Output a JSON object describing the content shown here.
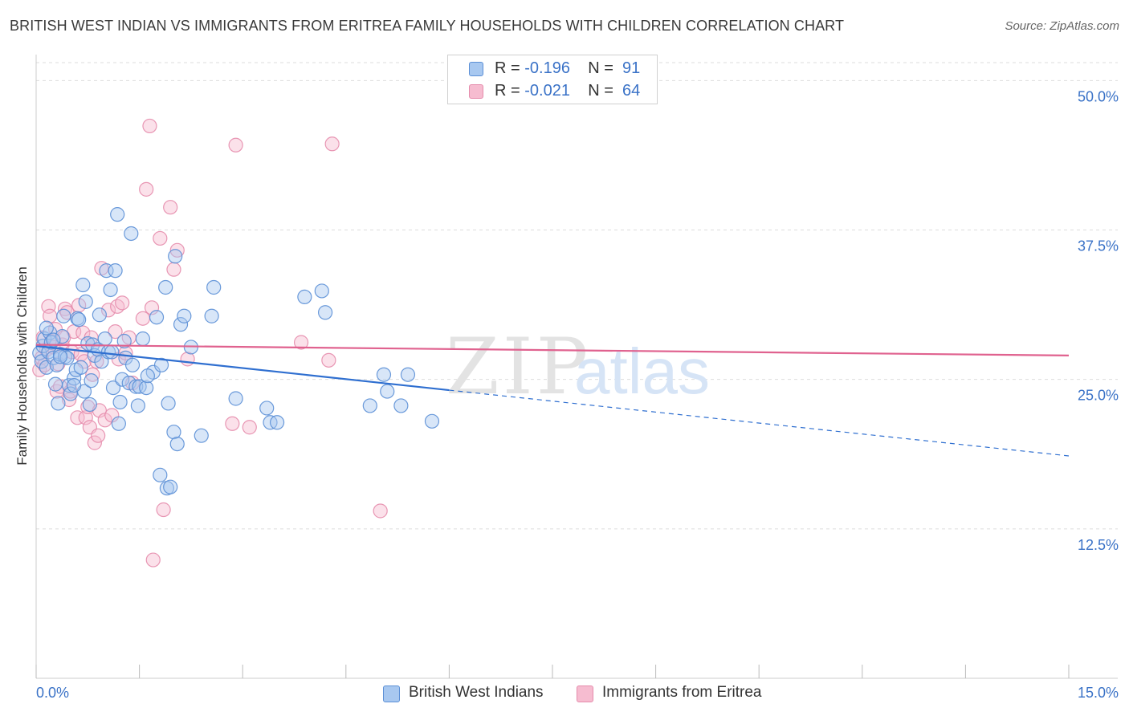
{
  "header": {
    "title": "BRITISH WEST INDIAN VS IMMIGRANTS FROM ERITREA FAMILY HOUSEHOLDS WITH CHILDREN CORRELATION CHART",
    "source": "Source: ZipAtlas.com"
  },
  "legend_top": {
    "rows": [
      {
        "r_label": "R =",
        "r_value": "-0.196",
        "n_label": "N =",
        "n_value": "91"
      },
      {
        "r_label": "R =",
        "r_value": "-0.021",
        "n_label": "N =",
        "n_value": "64"
      }
    ]
  },
  "legend_bottom": {
    "items": [
      {
        "label": "British West Indians"
      },
      {
        "label": "Immigrants from Eritrea"
      }
    ]
  },
  "colors": {
    "blue_fill": "#a8c8f0",
    "blue_stroke": "#5b8fd6",
    "blue_line": "#2f6fd0",
    "pink_fill": "#f6bcd0",
    "pink_stroke": "#e58cac",
    "pink_line": "#e0628f",
    "tick_label": "#3a72c7",
    "grid": "#dddddd"
  },
  "watermark": {
    "zip": "ZIP",
    "atlas": "atlas"
  },
  "chart_data": {
    "type": "scatter",
    "title": "BRITISH WEST INDIAN VS IMMIGRANTS FROM ERITREA FAMILY HOUSEHOLDS WITH CHILDREN CORRELATION CHART",
    "xlabel": "",
    "ylabel": "Family Households with Children",
    "xlim": [
      0,
      15
    ],
    "ylim": [
      0,
      51.5
    ],
    "x_tick_labels": [
      "0.0%",
      "15.0%"
    ],
    "y_ticks": [
      12.5,
      25.0,
      37.5,
      50.0
    ],
    "y_tick_labels": [
      "12.5%",
      "25.0%",
      "37.5%",
      "50.0%"
    ],
    "grid": true,
    "legend_position": "bottom",
    "series": [
      {
        "name": "British West Indians",
        "r": -0.196,
        "n": 91,
        "trend": {
          "x0": 0.0,
          "y0": 27.8,
          "x1": 6.0,
          "y1": 24.1,
          "dashed_to_x": 15.0,
          "dashed_to_y": 18.6
        },
        "points": [
          [
            0.05,
            27.2
          ],
          [
            0.08,
            26.5
          ],
          [
            0.1,
            27.8
          ],
          [
            0.12,
            28.4
          ],
          [
            0.15,
            26.0
          ],
          [
            0.18,
            27.3
          ],
          [
            0.2,
            28.9
          ],
          [
            0.22,
            28.1
          ],
          [
            0.25,
            26.8
          ],
          [
            0.28,
            24.6
          ],
          [
            0.3,
            26.2
          ],
          [
            0.32,
            23.0
          ],
          [
            0.35,
            27.1
          ],
          [
            0.38,
            28.6
          ],
          [
            0.4,
            30.3
          ],
          [
            0.42,
            26.9
          ],
          [
            0.45,
            26.8
          ],
          [
            0.48,
            24.5
          ],
          [
            0.5,
            23.8
          ],
          [
            0.55,
            25.1
          ],
          [
            0.58,
            25.8
          ],
          [
            0.6,
            30.1
          ],
          [
            0.62,
            30.0
          ],
          [
            0.65,
            26.0
          ],
          [
            0.68,
            32.9
          ],
          [
            0.7,
            24.0
          ],
          [
            0.72,
            31.5
          ],
          [
            0.75,
            28.0
          ],
          [
            0.78,
            22.9
          ],
          [
            0.8,
            24.9
          ],
          [
            0.82,
            27.9
          ],
          [
            0.85,
            27.0
          ],
          [
            0.9,
            27.5
          ],
          [
            0.92,
            30.4
          ],
          [
            0.95,
            26.5
          ],
          [
            1.0,
            28.4
          ],
          [
            1.02,
            34.1
          ],
          [
            1.05,
            27.3
          ],
          [
            1.08,
            32.5
          ],
          [
            1.1,
            27.3
          ],
          [
            1.12,
            24.3
          ],
          [
            1.15,
            34.1
          ],
          [
            1.18,
            38.8
          ],
          [
            1.2,
            21.3
          ],
          [
            1.22,
            23.1
          ],
          [
            1.25,
            25.0
          ],
          [
            1.28,
            28.2
          ],
          [
            1.3,
            26.8
          ],
          [
            1.35,
            24.7
          ],
          [
            1.38,
            37.2
          ],
          [
            1.4,
            26.2
          ],
          [
            1.45,
            24.4
          ],
          [
            1.48,
            22.8
          ],
          [
            1.5,
            24.4
          ],
          [
            1.55,
            28.4
          ],
          [
            1.6,
            24.3
          ],
          [
            1.7,
            25.6
          ],
          [
            1.75,
            30.2
          ],
          [
            1.8,
            17.0
          ],
          [
            1.82,
            26.2
          ],
          [
            1.88,
            32.7
          ],
          [
            1.9,
            15.9
          ],
          [
            1.92,
            23.0
          ],
          [
            1.95,
            16.0
          ],
          [
            2.0,
            20.6
          ],
          [
            2.02,
            35.3
          ],
          [
            2.05,
            19.6
          ],
          [
            2.1,
            29.6
          ],
          [
            2.15,
            30.3
          ],
          [
            2.25,
            27.7
          ],
          [
            2.4,
            20.3
          ],
          [
            2.55,
            30.3
          ],
          [
            2.58,
            32.7
          ],
          [
            2.9,
            23.4
          ],
          [
            3.35,
            22.6
          ],
          [
            3.4,
            21.4
          ],
          [
            3.5,
            21.4
          ],
          [
            3.9,
            31.9
          ],
          [
            4.15,
            32.4
          ],
          [
            4.2,
            30.6
          ],
          [
            4.85,
            22.8
          ],
          [
            5.05,
            25.4
          ],
          [
            5.1,
            24.0
          ],
          [
            5.3,
            22.8
          ],
          [
            5.4,
            25.4
          ],
          [
            5.75,
            21.5
          ],
          [
            0.15,
            29.3
          ],
          [
            0.25,
            28.3
          ],
          [
            0.55,
            24.5
          ],
          [
            0.35,
            26.9
          ],
          [
            1.62,
            25.3
          ]
        ]
      },
      {
        "name": "Immigrants from Eritrea",
        "r": -0.021,
        "n": 64,
        "trend": {
          "x0": 0.0,
          "y0": 27.9,
          "x1": 15.0,
          "y1": 27.0
        },
        "points": [
          [
            0.05,
            25.8
          ],
          [
            0.08,
            26.8
          ],
          [
            0.1,
            28.5
          ],
          [
            0.12,
            26.2
          ],
          [
            0.15,
            27.5
          ],
          [
            0.18,
            31.1
          ],
          [
            0.2,
            30.3
          ],
          [
            0.22,
            28.2
          ],
          [
            0.25,
            27.7
          ],
          [
            0.28,
            29.2
          ],
          [
            0.3,
            24.0
          ],
          [
            0.32,
            26.3
          ],
          [
            0.35,
            24.4
          ],
          [
            0.38,
            27.9
          ],
          [
            0.4,
            28.5
          ],
          [
            0.42,
            30.9
          ],
          [
            0.45,
            30.6
          ],
          [
            0.48,
            23.3
          ],
          [
            0.5,
            24.0
          ],
          [
            0.52,
            27.3
          ],
          [
            0.55,
            29.0
          ],
          [
            0.6,
            21.8
          ],
          [
            0.62,
            31.2
          ],
          [
            0.65,
            27.1
          ],
          [
            0.68,
            28.9
          ],
          [
            0.7,
            26.5
          ],
          [
            0.72,
            21.8
          ],
          [
            0.75,
            22.7
          ],
          [
            0.78,
            21.0
          ],
          [
            0.8,
            28.5
          ],
          [
            0.82,
            25.4
          ],
          [
            0.85,
            19.7
          ],
          [
            0.88,
            26.5
          ],
          [
            0.9,
            20.3
          ],
          [
            0.92,
            22.4
          ],
          [
            0.95,
            34.3
          ],
          [
            1.0,
            21.6
          ],
          [
            1.05,
            30.8
          ],
          [
            1.1,
            22.0
          ],
          [
            1.15,
            29.0
          ],
          [
            1.18,
            31.1
          ],
          [
            1.2,
            26.7
          ],
          [
            1.25,
            31.4
          ],
          [
            1.3,
            27.2
          ],
          [
            1.35,
            28.5
          ],
          [
            1.4,
            24.7
          ],
          [
            1.55,
            30.1
          ],
          [
            1.6,
            40.9
          ],
          [
            1.65,
            46.2
          ],
          [
            1.68,
            31.0
          ],
          [
            1.7,
            9.9
          ],
          [
            1.8,
            36.8
          ],
          [
            1.85,
            14.1
          ],
          [
            1.95,
            39.4
          ],
          [
            2.0,
            34.2
          ],
          [
            2.05,
            35.8
          ],
          [
            2.2,
            26.7
          ],
          [
            2.85,
            21.3
          ],
          [
            2.9,
            44.6
          ],
          [
            3.1,
            21.0
          ],
          [
            3.85,
            28.1
          ],
          [
            4.25,
            26.6
          ],
          [
            4.3,
            44.7
          ],
          [
            5.0,
            14.0
          ]
        ]
      }
    ],
    "extra_points_note": ""
  }
}
